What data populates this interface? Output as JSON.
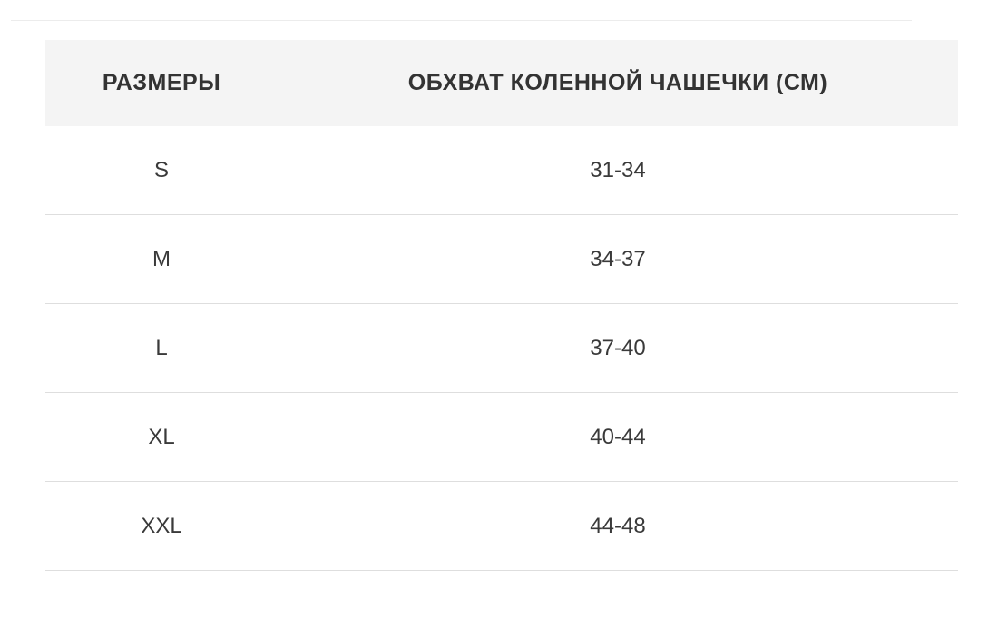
{
  "table": {
    "headers": [
      "РАЗМЕРЫ",
      "ОБХВАТ КОЛЕННОЙ ЧАШЕЧКИ (СМ)"
    ],
    "rows": [
      [
        "S",
        "31-34"
      ],
      [
        "M",
        "34-37"
      ],
      [
        "L",
        "37-40"
      ],
      [
        "XL",
        "40-44"
      ],
      [
        "XXL",
        "44-48"
      ]
    ]
  }
}
